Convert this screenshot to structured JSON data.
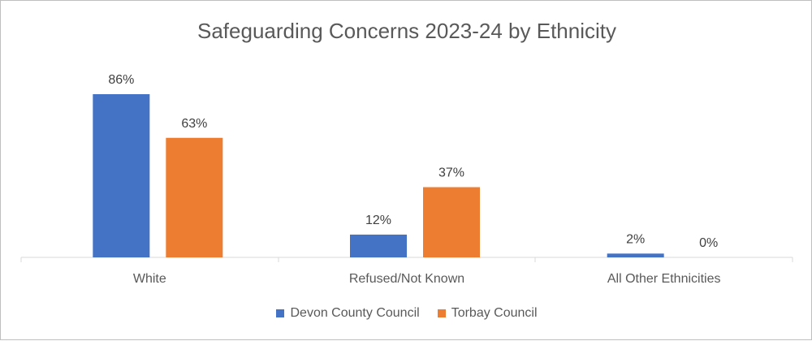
{
  "chart_data": {
    "type": "bar",
    "title": "Safeguarding Concerns  2023-24 by Ethnicity",
    "categories": [
      "White",
      "Refused/Not Known",
      "All Other Ethnicities"
    ],
    "series": [
      {
        "name": "Devon County Council",
        "values": [
          86,
          12,
          2
        ],
        "labels": [
          "86%",
          "12%",
          "2%"
        ],
        "color": "#4472c4"
      },
      {
        "name": "Torbay Council",
        "values": [
          63,
          37,
          0
        ],
        "labels": [
          "63%",
          "37%",
          "0%"
        ],
        "color": "#ed7d31"
      }
    ],
    "ylim": [
      0,
      86
    ],
    "xlabel": "",
    "ylabel": "",
    "grid": false,
    "legend_position": "bottom"
  }
}
